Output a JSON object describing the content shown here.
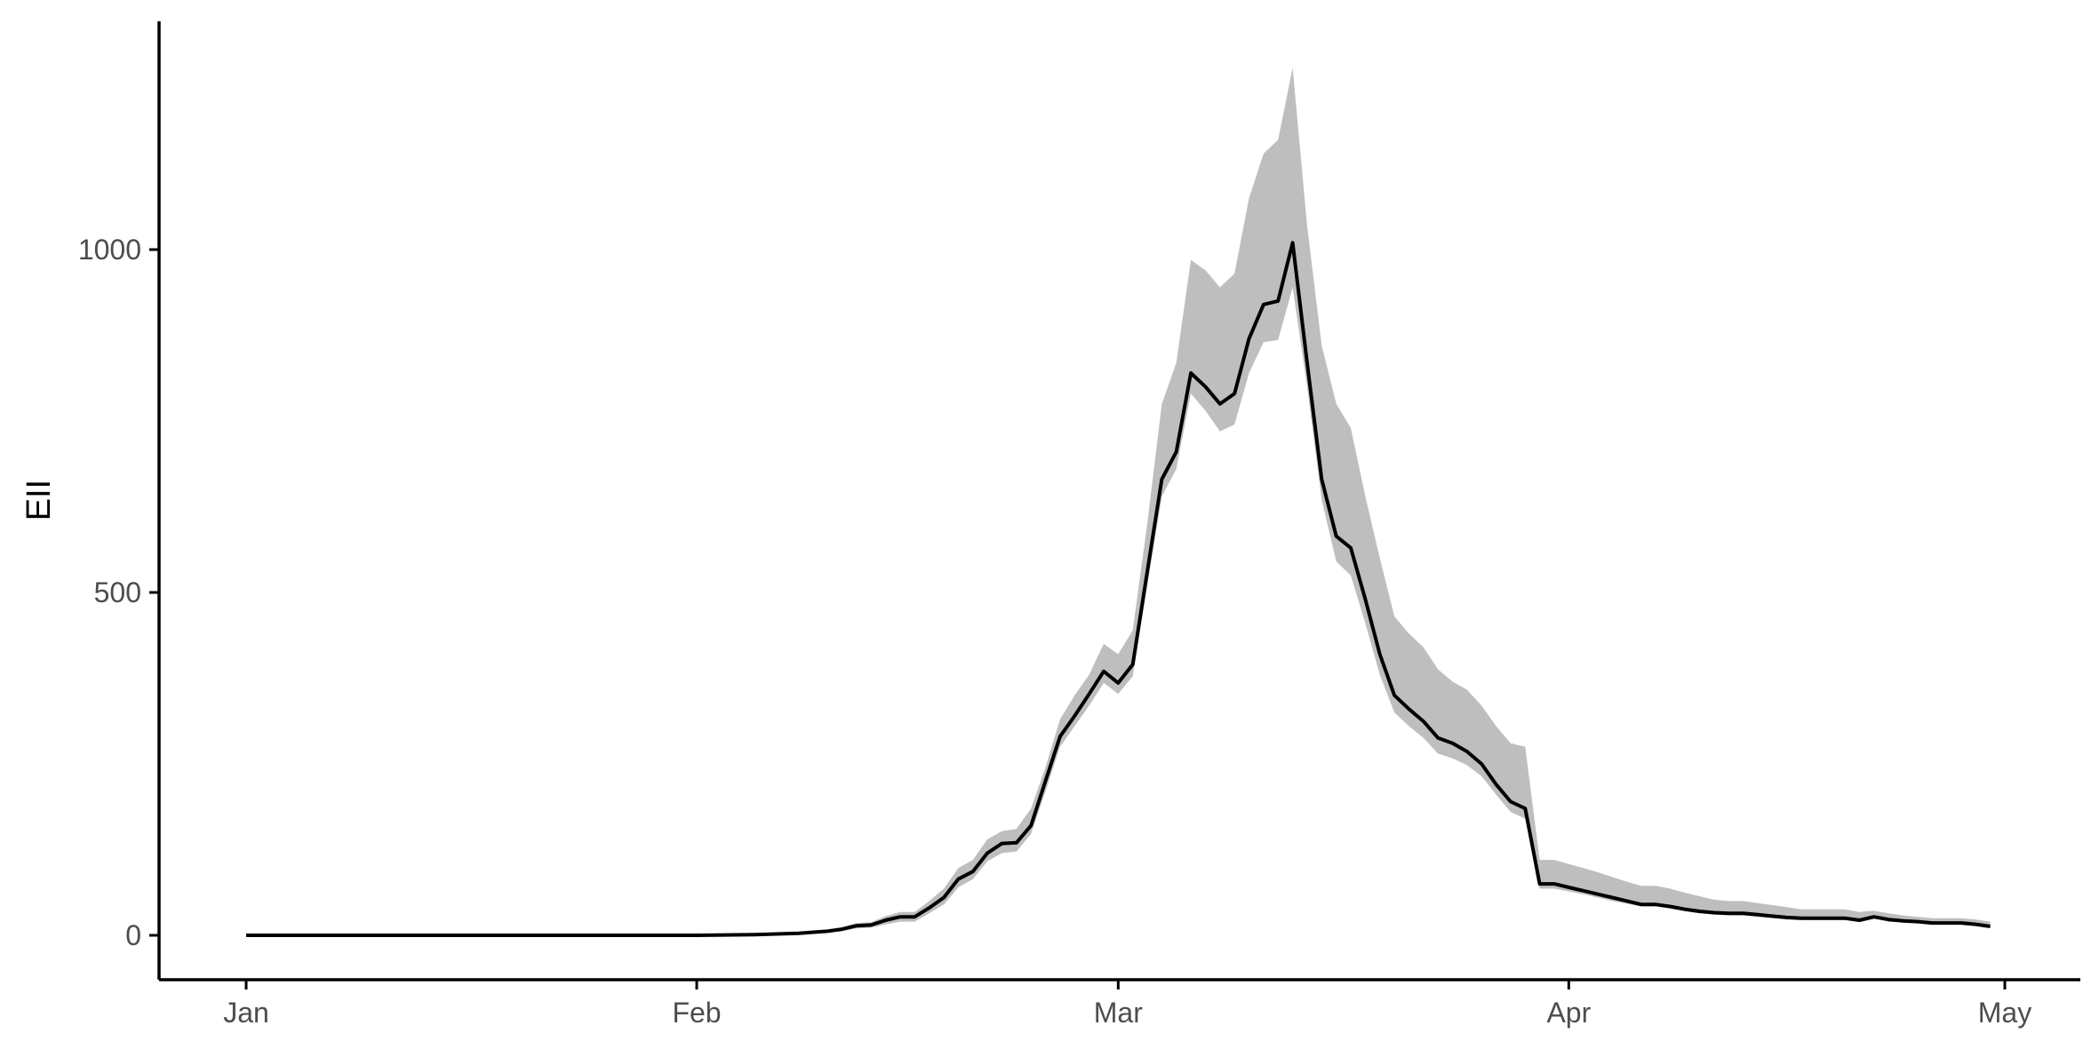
{
  "chart_data": {
    "type": "line",
    "title": "",
    "xlabel": "",
    "ylabel": "EII",
    "xlim": [
      "2020-01-01",
      "2020-05-02"
    ],
    "ylim": [
      -62,
      1330
    ],
    "yticks": [
      0,
      500,
      1000
    ],
    "ytick_labels": [
      "0",
      "500",
      "1000"
    ],
    "xticks": [
      "2020-01-01",
      "2020-02-01",
      "2020-03-01",
      "2020-04-01",
      "2020-05-01"
    ],
    "xtick_labels": [
      "Jan",
      "Feb",
      "Mar",
      "Apr",
      "May"
    ],
    "grid": false,
    "legend": "none",
    "colors": {
      "line": "#000000",
      "ribbon": "#bebebe",
      "axis": "#000000",
      "tick_text": "#4d4d4d"
    },
    "series": [
      {
        "x": [
          "2020-01-01",
          "2020-01-15",
          "2020-02-01",
          "2020-02-05",
          "2020-02-08",
          "2020-02-10",
          "2020-02-11",
          "2020-02-12",
          "2020-02-13",
          "2020-02-14",
          "2020-02-15",
          "2020-02-16",
          "2020-02-17",
          "2020-02-18",
          "2020-02-19",
          "2020-02-20",
          "2020-02-21",
          "2020-02-22",
          "2020-02-23",
          "2020-02-24",
          "2020-02-25",
          "2020-02-26",
          "2020-02-27",
          "2020-02-28",
          "2020-02-29",
          "2020-03-01",
          "2020-03-02",
          "2020-03-03",
          "2020-03-04",
          "2020-03-05",
          "2020-03-06",
          "2020-03-07",
          "2020-03-08",
          "2020-03-09",
          "2020-03-10",
          "2020-03-11",
          "2020-03-12",
          "2020-03-13",
          "2020-03-14",
          "2020-03-15",
          "2020-03-16",
          "2020-03-17",
          "2020-03-18",
          "2020-03-19",
          "2020-03-20",
          "2020-03-21",
          "2020-03-22",
          "2020-03-23",
          "2020-03-24",
          "2020-03-25",
          "2020-03-26",
          "2020-03-27",
          "2020-03-28",
          "2020-03-29",
          "2020-03-30",
          "2020-03-31",
          "2020-04-01",
          "2020-04-02",
          "2020-04-03",
          "2020-04-04",
          "2020-04-05",
          "2020-04-06",
          "2020-04-07",
          "2020-04-08",
          "2020-04-09",
          "2020-04-10",
          "2020-04-11",
          "2020-04-12",
          "2020-04-13",
          "2020-04-14",
          "2020-04-15",
          "2020-04-16",
          "2020-04-17",
          "2020-04-18",
          "2020-04-19",
          "2020-04-20",
          "2020-04-21",
          "2020-04-22",
          "2020-04-23",
          "2020-04-24",
          "2020-04-25",
          "2020-04-26",
          "2020-04-27",
          "2020-04-28",
          "2020-04-29",
          "2020-04-30"
        ],
        "y": [
          0,
          0,
          0,
          1,
          3,
          6,
          9,
          14,
          15,
          22,
          27,
          27,
          40,
          55,
          82,
          93,
          120,
          134,
          135,
          160,
          225,
          290,
          320,
          352,
          385,
          368,
          395,
          530,
          665,
          705,
          820,
          800,
          775,
          790,
          870,
          920,
          925,
          1010,
          835,
          665,
          582,
          565,
          490,
          410,
          350,
          330,
          312,
          288,
          280,
          268,
          250,
          220,
          195,
          185,
          75,
          75,
          70,
          65,
          60,
          55,
          50,
          45,
          45,
          42,
          38,
          35,
          33,
          32,
          32,
          30,
          28,
          26,
          25,
          25,
          25,
          25,
          22,
          27,
          23,
          21,
          20,
          18,
          18,
          18,
          16,
          13
        ],
        "lower": [
          0,
          0,
          0,
          1,
          2,
          4,
          6,
          10,
          11,
          16,
          20,
          20,
          32,
          45,
          70,
          82,
          108,
          120,
          122,
          148,
          210,
          275,
          305,
          335,
          368,
          352,
          378,
          510,
          640,
          680,
          790,
          765,
          735,
          745,
          820,
          865,
          868,
          945,
          800,
          635,
          545,
          525,
          455,
          380,
          325,
          305,
          288,
          265,
          258,
          248,
          232,
          205,
          180,
          170,
          68,
          68,
          64,
          60,
          55,
          50,
          46,
          42,
          42,
          39,
          35,
          32,
          30,
          29,
          29,
          27,
          25,
          23,
          22,
          22,
          22,
          22,
          19,
          24,
          20,
          19,
          18,
          16,
          16,
          16,
          14,
          12
        ],
        "upper": [
          0,
          0,
          0,
          1,
          4,
          8,
          12,
          18,
          19,
          28,
          34,
          34,
          50,
          68,
          98,
          110,
          140,
          152,
          155,
          185,
          245,
          315,
          350,
          380,
          425,
          410,
          445,
          600,
          775,
          835,
          985,
          970,
          945,
          965,
          1075,
          1140,
          1160,
          1265,
          1035,
          860,
          775,
          740,
          640,
          550,
          465,
          440,
          420,
          388,
          370,
          358,
          335,
          305,
          280,
          275,
          110,
          110,
          104,
          98,
          92,
          85,
          78,
          72,
          72,
          68,
          62,
          57,
          52,
          50,
          50,
          47,
          44,
          41,
          38,
          38,
          38,
          38,
          34,
          36,
          32,
          29,
          27,
          25,
          25,
          25,
          23,
          20
        ]
      }
    ]
  }
}
